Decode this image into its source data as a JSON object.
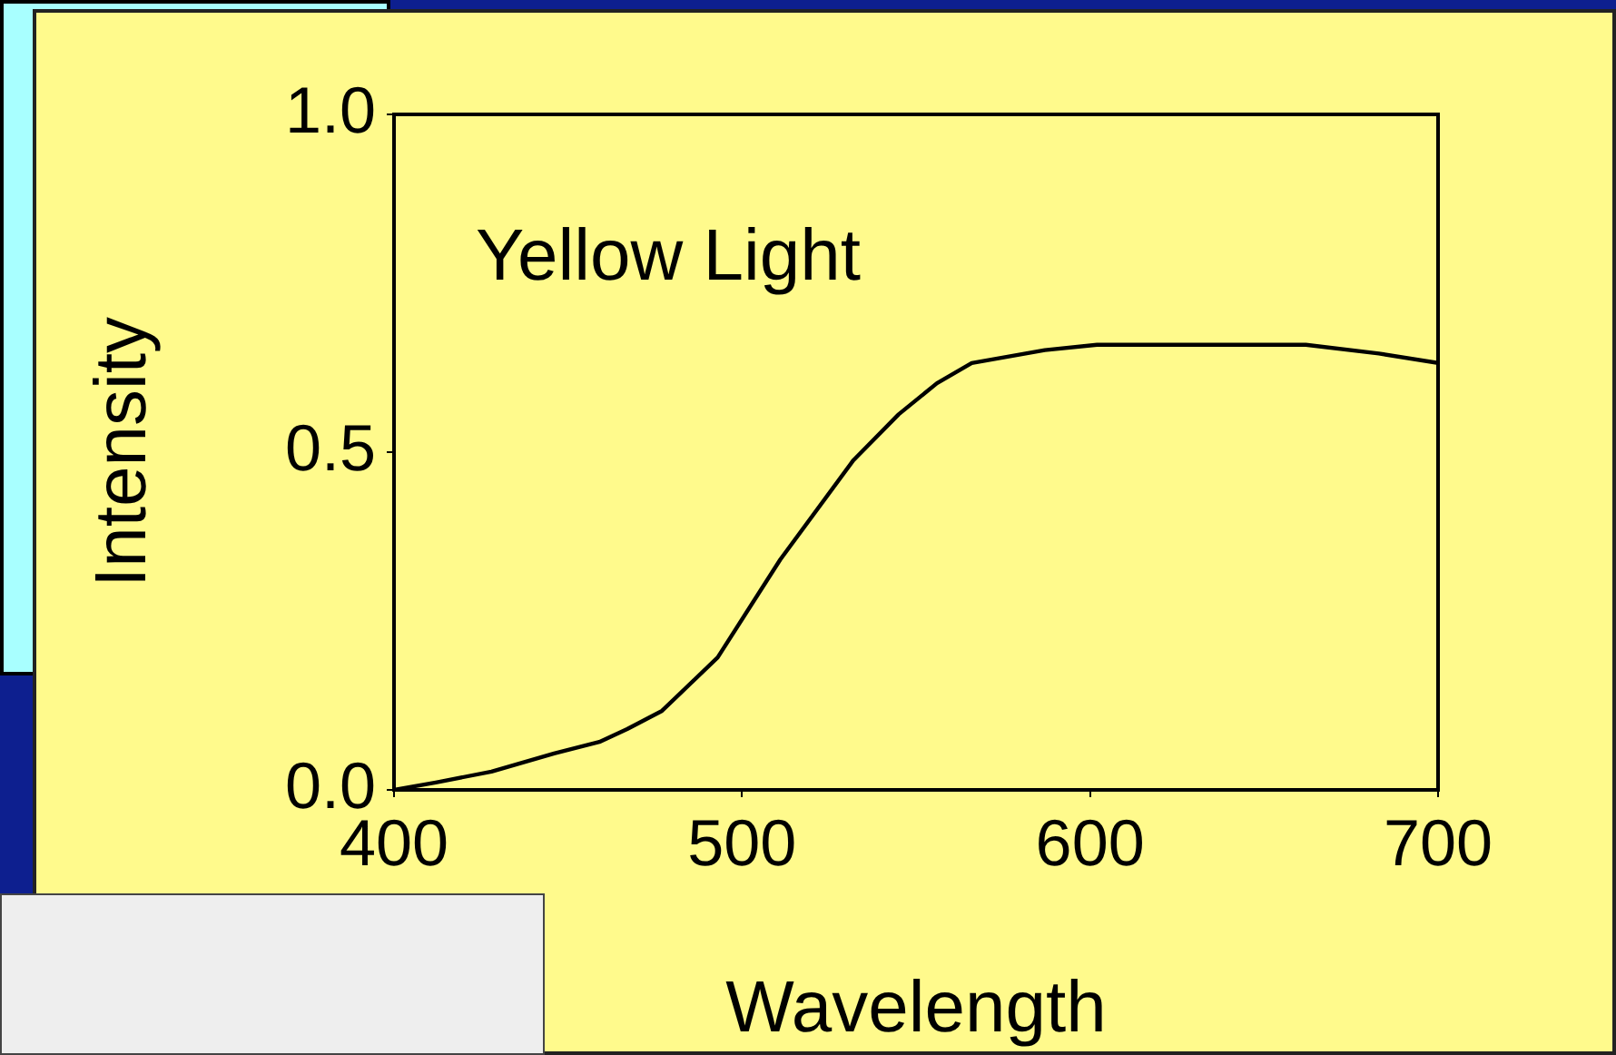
{
  "chart_data": {
    "type": "line",
    "xlabel": "Wavelength",
    "ylabel": "Intensity",
    "annotations": [
      "Yellow Light"
    ],
    "xlim": [
      400,
      700
    ],
    "xticks": [
      400,
      500,
      600,
      700
    ],
    "ylim": [
      0,
      1
    ],
    "yticks": [
      {
        "value": 0,
        "label": "0.0"
      },
      {
        "value": 0.5,
        "label": "0.5"
      },
      {
        "value": 1,
        "label": "1.0"
      }
    ],
    "grid": false,
    "legend": false,
    "marker": "none",
    "line_style": "solid",
    "series": [
      {
        "color": "#000000",
        "x": [
          400,
          412,
          428,
          446,
          459,
          467,
          477,
          493,
          511,
          532,
          545,
          556,
          566,
          587,
          602,
          621,
          642,
          662,
          683,
          700
        ],
        "values": [
          0,
          0.011,
          0.027,
          0.054,
          0.071,
          0.09,
          0.117,
          0.196,
          0.341,
          0.488,
          0.556,
          0.602,
          0.632,
          0.651,
          0.659,
          0.659,
          0.659,
          0.659,
          0.646,
          0.632
        ]
      }
    ]
  }
}
